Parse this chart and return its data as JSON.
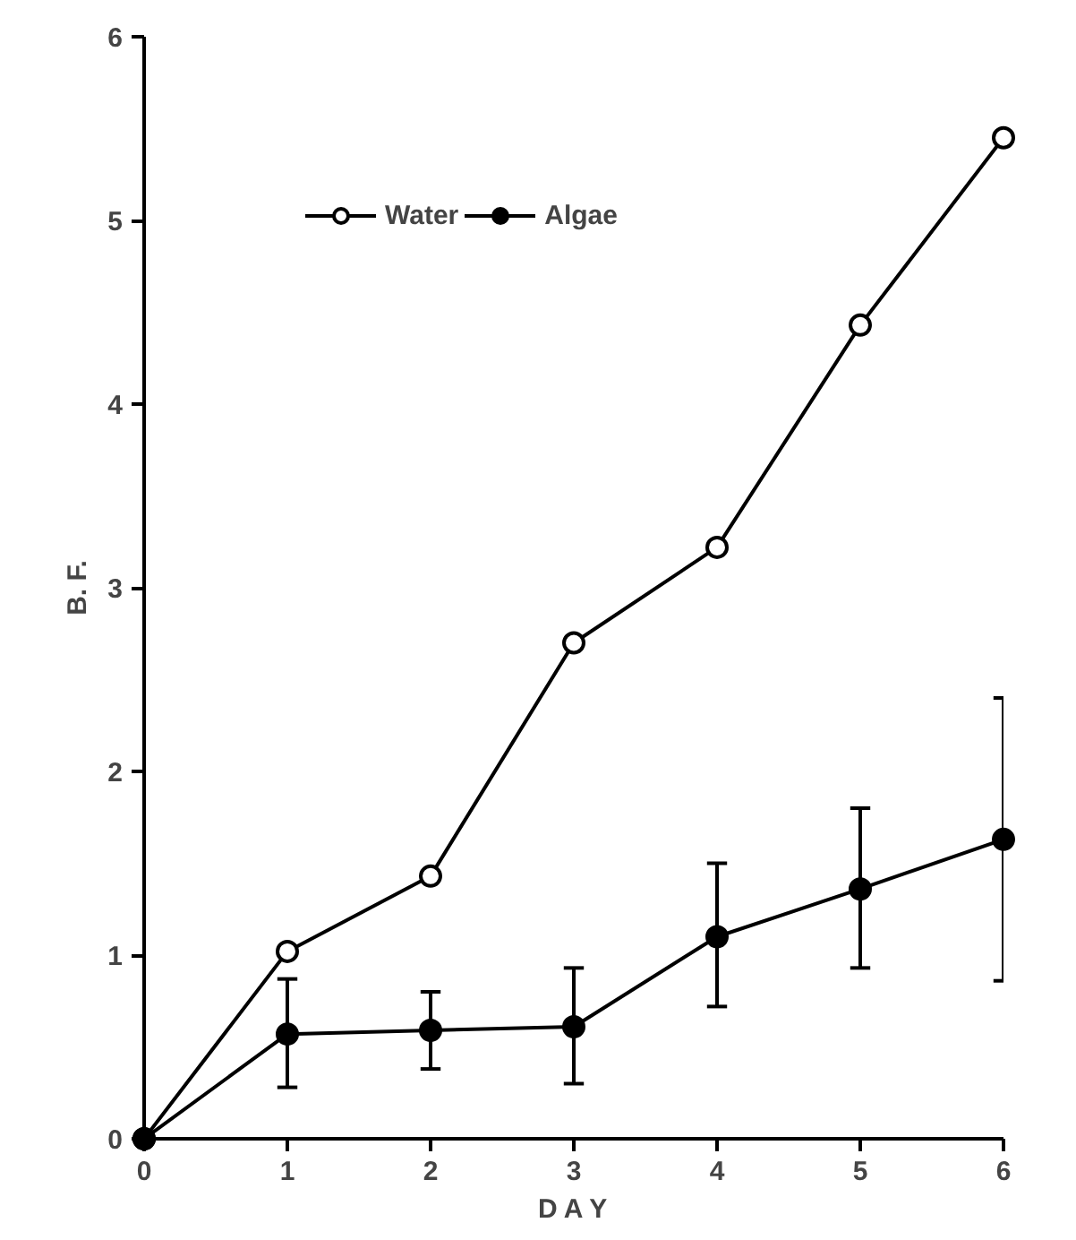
{
  "chart_data": {
    "type": "line",
    "xlabel": "D A Y",
    "ylabel": "B. F.",
    "x": [
      0,
      1,
      2,
      3,
      4,
      5,
      6
    ],
    "series": [
      {
        "name": "Water",
        "color": "#000000",
        "marker": "circle_open",
        "values": [
          0,
          1.02,
          1.43,
          2.7,
          3.22,
          4.43,
          5.45
        ]
      },
      {
        "name": "Algae",
        "color": "#000000",
        "marker": "circle",
        "values": [
          0,
          0.57,
          0.59,
          0.61,
          1.1,
          1.36,
          1.63
        ],
        "errors": [
          null,
          [
            0.28,
            0.87
          ],
          [
            0.38,
            0.8
          ],
          [
            0.3,
            0.93
          ],
          [
            0.72,
            1.5
          ],
          [
            0.93,
            1.8
          ],
          [
            0.86,
            2.4
          ]
        ]
      }
    ],
    "xlim": [
      0,
      6
    ],
    "ylim": [
      0,
      6
    ],
    "xticks": [
      0,
      1,
      2,
      3,
      4,
      5,
      6
    ],
    "yticks": [
      0,
      1,
      2,
      3,
      4,
      5,
      6
    ],
    "grid": false,
    "legend": "top left",
    "line_style": "solid"
  }
}
